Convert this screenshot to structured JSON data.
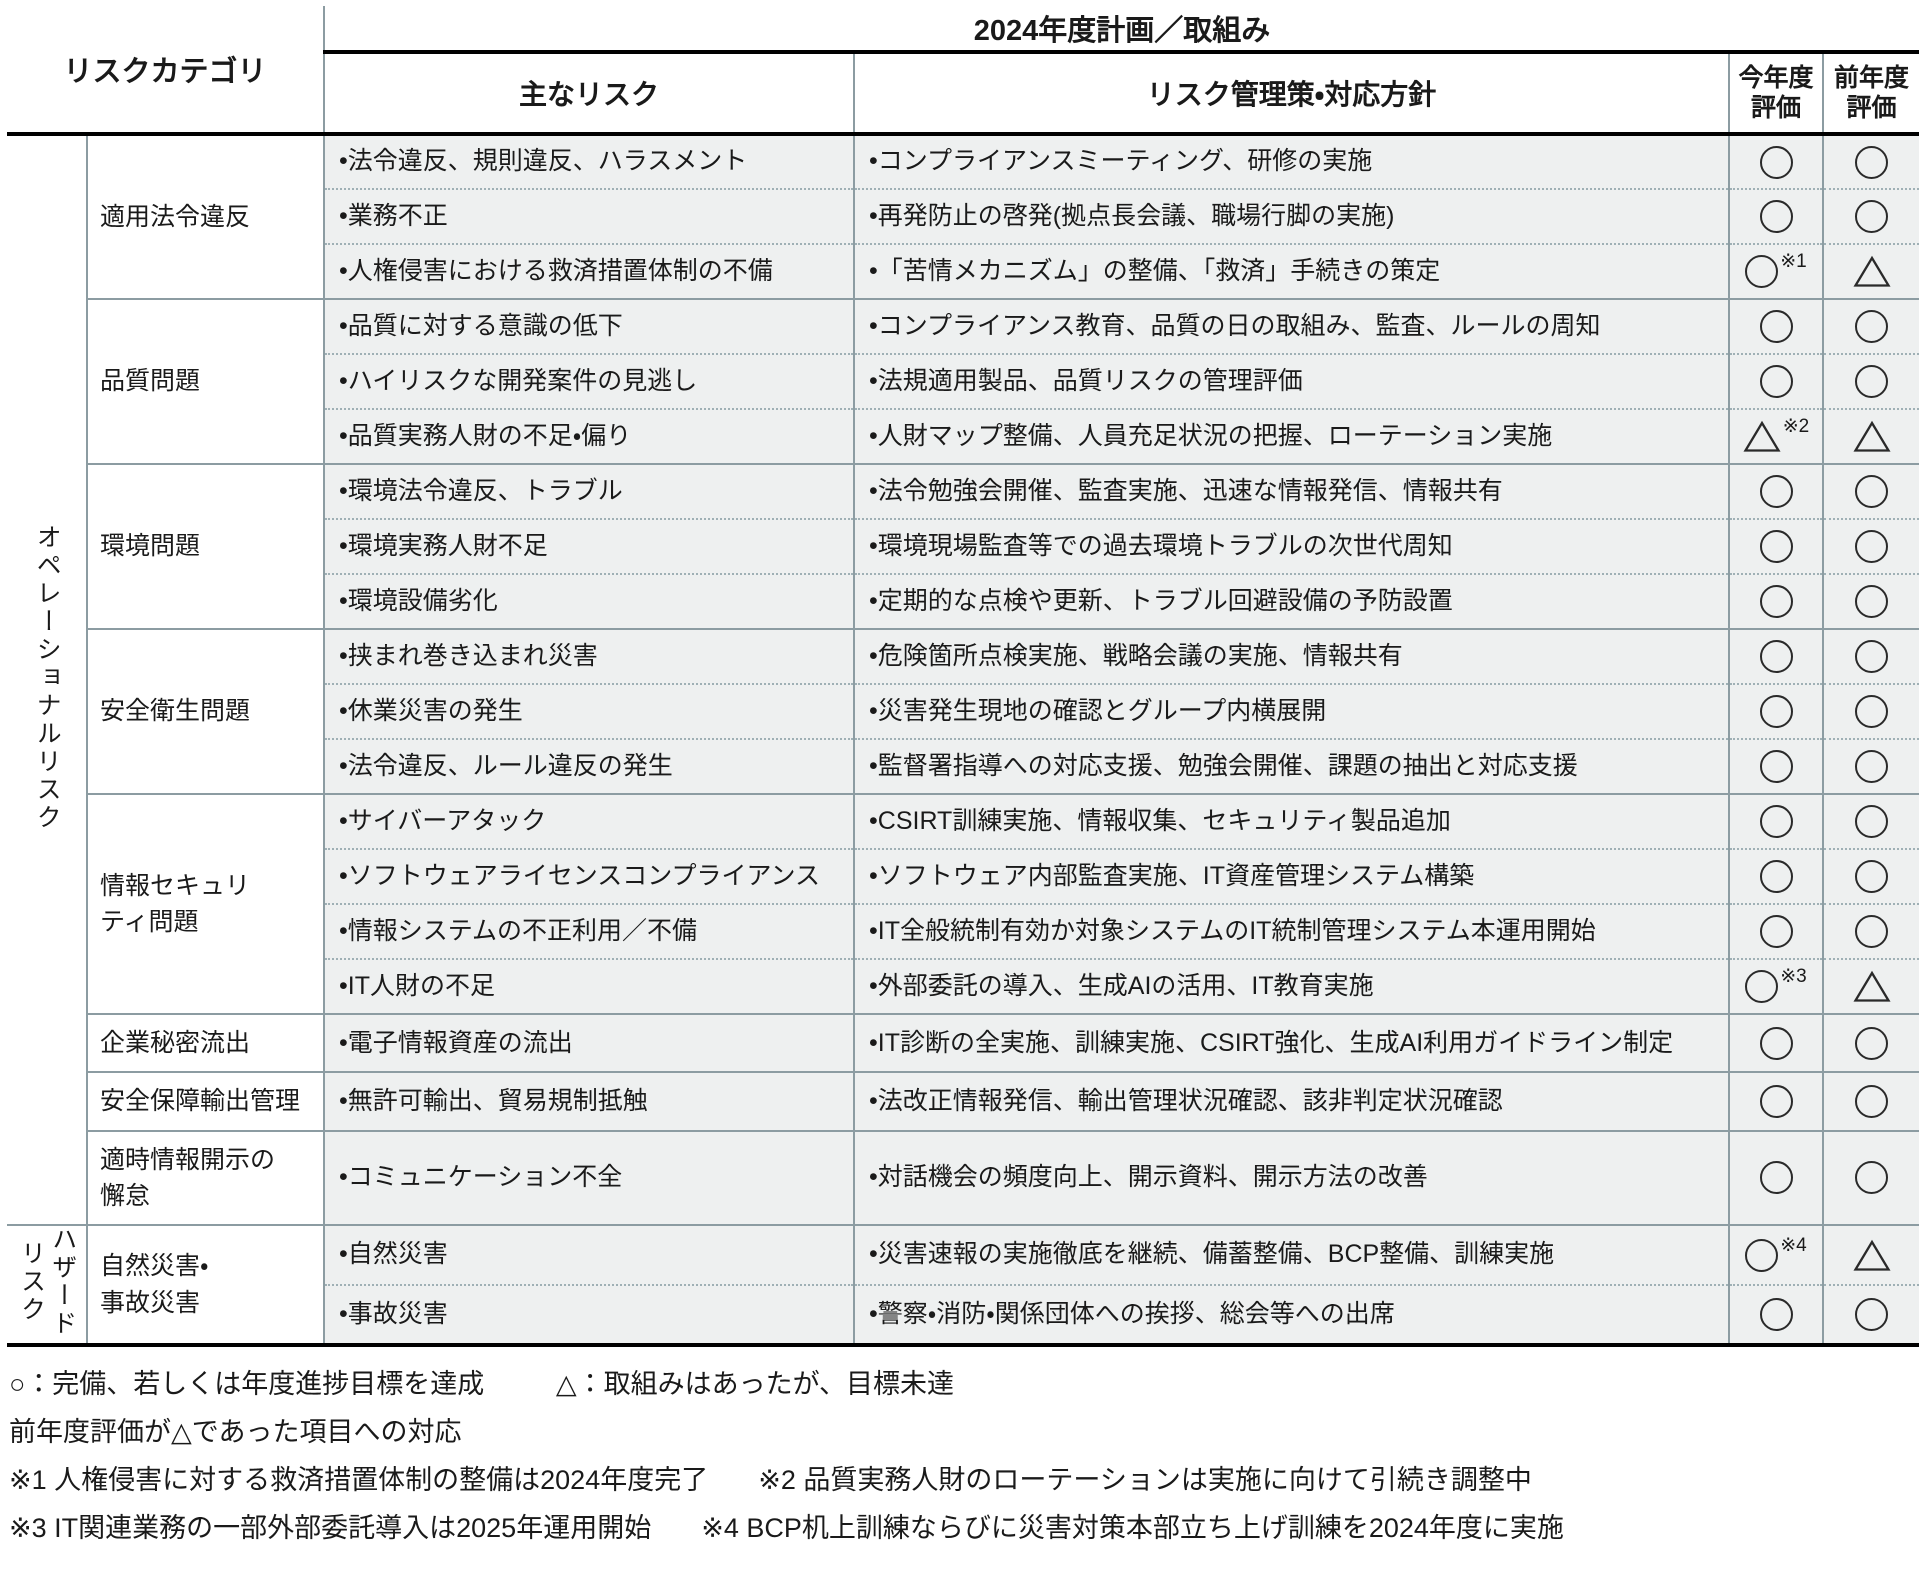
{
  "colors": {
    "cell_bg": "#eef0f0",
    "border_gray": "#8c9ca2",
    "dotted_gray": "#9fb0b5",
    "line_black": "#000000",
    "text": "#1a1a1a"
  },
  "table": {
    "header": {
      "risk_category": "リスクカテゴリ",
      "plan_title": "2024年度計画／取組み",
      "main_risk": "主なリスク",
      "management": "リスク管理策・対応方針",
      "current_eval": "今年度\n評価",
      "previous_eval": "前年度\n評価"
    },
    "groups": [
      {
        "vertical_label_lines": [
          "オペレーショナルリスク"
        ],
        "categories": [
          {
            "name": "適用法令違反",
            "rows": [
              {
                "risk": "•法令違反、規則違反、ハラスメント",
                "management": "•コンプライアンスミーティング、研修の実施",
                "current": "○",
                "current_note": "",
                "previous": "○"
              },
              {
                "risk": "•業務不正",
                "management": "•再発防止の啓発(拠点長会議、職場行脚の実施)",
                "current": "○",
                "current_note": "",
                "previous": "○"
              },
              {
                "risk": "•人権侵害における救済措置体制の不備",
                "management": "•「苦情メカニズム」の整備、「救済」手続きの策定",
                "current": "○",
                "current_note": "※1",
                "previous": "△"
              }
            ]
          },
          {
            "name": "品質問題",
            "rows": [
              {
                "risk": "•品質に対する意識の低下",
                "management": "•コンプライアンス教育、品質の日の取組み、監査、ルールの周知",
                "current": "○",
                "current_note": "",
                "previous": "○"
              },
              {
                "risk": "•ハイリスクな開発案件の見逃し",
                "management": "•法規適用製品、品質リスクの管理評価",
                "current": "○",
                "current_note": "",
                "previous": "○"
              },
              {
                "risk": "•品質実務人財の不足・偏り",
                "management": "•人財マップ整備、人員充足状況の把握、ローテーション実施",
                "current": "△",
                "current_note": "※2",
                "previous": "△"
              }
            ]
          },
          {
            "name": "環境問題",
            "rows": [
              {
                "risk": "•環境法令違反、トラブル",
                "management": "•法令勉強会開催、監査実施、迅速な情報発信、情報共有",
                "current": "○",
                "current_note": "",
                "previous": "○"
              },
              {
                "risk": "•環境実務人財不足",
                "management": "•環境現場監査等での過去環境トラブルの次世代周知",
                "current": "○",
                "current_note": "",
                "previous": "○"
              },
              {
                "risk": "•環境設備劣化",
                "management": "•定期的な点検や更新、トラブル回避設備の予防設置",
                "current": "○",
                "current_note": "",
                "previous": "○"
              }
            ]
          },
          {
            "name": "安全衛生問題",
            "rows": [
              {
                "risk": "•挟まれ巻き込まれ災害",
                "management": "•危険箇所点検実施、戦略会議の実施、情報共有",
                "current": "○",
                "current_note": "",
                "previous": "○"
              },
              {
                "risk": "•休業災害の発生",
                "management": "•災害発生現地の確認とグループ内横展開",
                "current": "○",
                "current_note": "",
                "previous": "○"
              },
              {
                "risk": "•法令違反、ルール違反の発生",
                "management": "•監督署指導への対応支援、勉強会開催、課題の抽出と対応支援",
                "current": "○",
                "current_note": "",
                "previous": "○"
              }
            ]
          },
          {
            "name": "情報セキュリ\nティ問題",
            "rows": [
              {
                "risk": "•サイバーアタック",
                "management": "•CSIRT訓練実施、情報収集、セキュリティ製品追加",
                "current": "○",
                "current_note": "",
                "previous": "○"
              },
              {
                "risk": "•ソフトウェアライセンスコンプライアンス",
                "management": "•ソフトウェア内部監査実施、IT資産管理システム構築",
                "current": "○",
                "current_note": "",
                "previous": "○"
              },
              {
                "risk": "•情報システムの不正利用／不備",
                "management": "•IT全般統制有効か対象システムのIT統制管理システム本運用開始",
                "current": "○",
                "current_note": "",
                "previous": "○"
              },
              {
                "risk": "•IT人財の不足",
                "management": "•外部委託の導入、生成AIの活用、IT教育実施",
                "current": "○",
                "current_note": "※3",
                "previous": "△"
              }
            ]
          },
          {
            "name": "企業秘密流出",
            "rows": [
              {
                "risk": "•電子情報資産の流出",
                "management": "•IT診断の全実施、訓練実施、CSIRT強化、生成AI利用ガイドライン制定",
                "current": "○",
                "current_note": "",
                "previous": "○"
              }
            ]
          },
          {
            "name": "安全保障輸出管理",
            "rows": [
              {
                "risk": "•無許可輸出、貿易規制抵触",
                "management": "•法改正情報発信、輸出管理状況確認、該非判定状況確認",
                "current": "○",
                "current_note": "",
                "previous": "○"
              }
            ]
          },
          {
            "name": "適時情報開示の\n懈怠",
            "rows": [
              {
                "risk": "•コミュニケーション不全",
                "management": "•対話機会の頻度向上、開示資料、開示方法の改善",
                "current": "○",
                "current_note": "",
                "previous": "○"
              }
            ]
          }
        ]
      },
      {
        "vertical_label_lines": [
          "ハザード",
          "リスク"
        ],
        "categories": [
          {
            "name": "自然災害・\n事故災害",
            "rows": [
              {
                "risk": "•自然災害",
                "management": "•災害速報の実施徹底を継続、備蓄整備、BCP整備、訓練実施",
                "current": "○",
                "current_note": "※4",
                "previous": "△"
              },
              {
                "risk": "•事故災害",
                "management": "•警察・消防・関係団体への挨拶、総会等への出席",
                "current": "○",
                "current_note": "",
                "previous": "○"
              }
            ]
          }
        ]
      }
    ]
  },
  "footer": {
    "legend": [
      "○：完備、若しくは年度進捗目標を達成",
      "△：取組みはあったが、目標未達"
    ],
    "response_heading": "前年度評価が△であった項目への対応",
    "note_lines": [
      [
        "※1 人権侵害に対する救済措置体制の整備は2024年度完了",
        "※2 品質実務人財のローテーションは実施に向けて引続き調整中"
      ],
      [
        "※3 IT関連業務の一部外部委託導入は2025年運用開始",
        "※4 BCP机上訓練ならびに災害対策本部立ち上げ訓練を2024年度に実施"
      ]
    ]
  }
}
